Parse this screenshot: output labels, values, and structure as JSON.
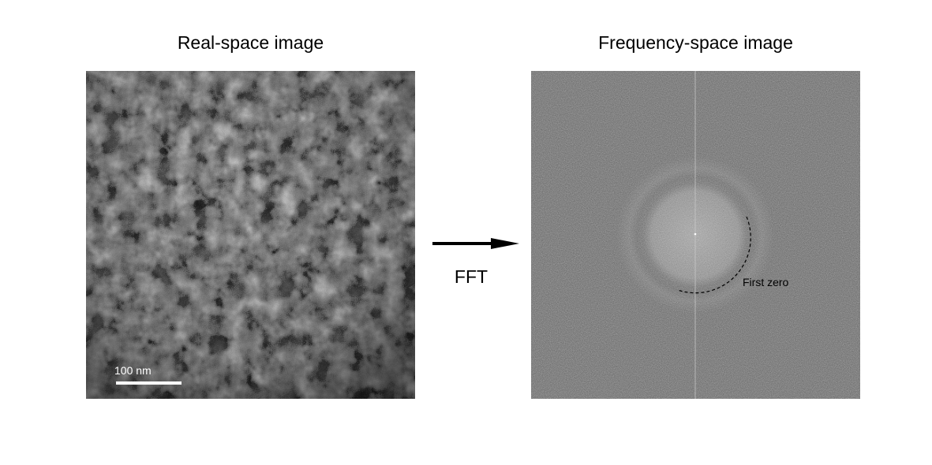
{
  "left_panel": {
    "title": "Real-space image",
    "scale_bar_label": "100 nm"
  },
  "arrow": {
    "label": "FFT"
  },
  "right_panel": {
    "title": "Frequency-space image",
    "annotation": "First zero"
  },
  "colors": {
    "background": "#ffffff",
    "text": "#000000",
    "scale_bar": "#ffffff",
    "arrow": "#000000",
    "ring": "#000000"
  },
  "icons": [
    "right-arrow-icon"
  ]
}
